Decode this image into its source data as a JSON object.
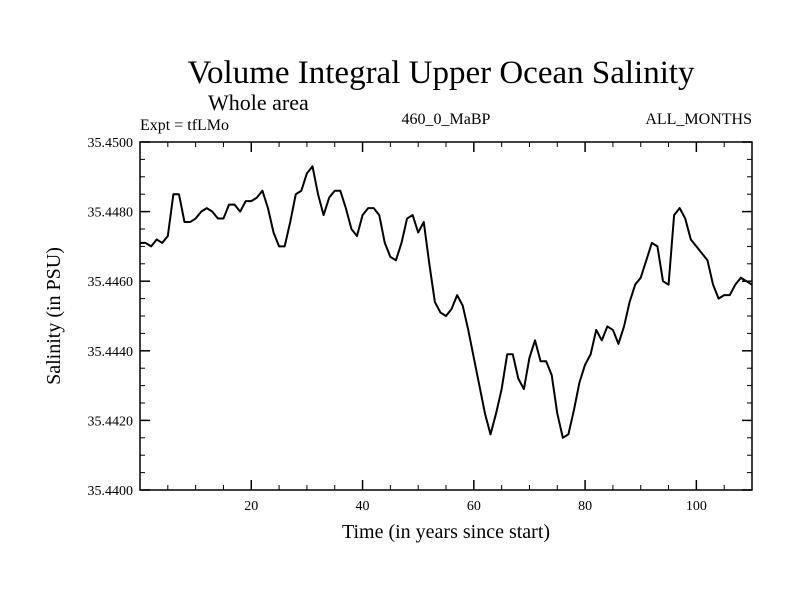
{
  "chart_data": {
    "type": "line",
    "title": "Volume Integral Upper Ocean Salinity",
    "subtitle": "Whole area",
    "left_label": "Expt = tfLMo",
    "center_label": "460_0_MaBP",
    "right_label": "ALL_MONTHS",
    "xlabel": "Time (in years since start)",
    "ylabel": "Salinity (in PSU)",
    "xlim": [
      0,
      110
    ],
    "ylim": [
      35.44,
      35.45
    ],
    "xticks": [
      20,
      40,
      60,
      80,
      100
    ],
    "xtick_labels": [
      "20",
      "40",
      "60",
      "80",
      "100"
    ],
    "yticks": [
      35.44,
      35.442,
      35.444,
      35.446,
      35.448,
      35.45
    ],
    "ytick_labels": [
      "35.4400",
      "35.4420",
      "35.4440",
      "35.4460",
      "35.4480",
      "35.4500"
    ],
    "series": [
      {
        "name": "salinity",
        "x": [
          0,
          1,
          2,
          3,
          4,
          5,
          6,
          7,
          8,
          9,
          10,
          11,
          12,
          13,
          14,
          15,
          16,
          17,
          18,
          19,
          20,
          21,
          22,
          23,
          24,
          25,
          26,
          27,
          28,
          29,
          30,
          31,
          32,
          33,
          34,
          35,
          36,
          37,
          38,
          39,
          40,
          41,
          42,
          43,
          44,
          45,
          46,
          47,
          48,
          49,
          50,
          51,
          52,
          53,
          54,
          55,
          56,
          57,
          58,
          59,
          60,
          61,
          62,
          63,
          64,
          65,
          66,
          67,
          68,
          69,
          70,
          71,
          72,
          73,
          74,
          75,
          76,
          77,
          78,
          79,
          80,
          81,
          82,
          83,
          84,
          85,
          86,
          87,
          88,
          89,
          90,
          91,
          92,
          93,
          94,
          95,
          96,
          97,
          98,
          99,
          100,
          101,
          102,
          103,
          104,
          105,
          106,
          107,
          108,
          109,
          110
        ],
        "y": [
          35.4471,
          35.4471,
          35.447,
          35.4472,
          35.4471,
          35.4473,
          35.4485,
          35.4485,
          35.4477,
          35.4477,
          35.4478,
          35.448,
          35.4481,
          35.448,
          35.4478,
          35.4478,
          35.4482,
          35.4482,
          35.448,
          35.4483,
          35.4483,
          35.4484,
          35.4486,
          35.4481,
          35.4474,
          35.447,
          35.447,
          35.4477,
          35.4485,
          35.4486,
          35.4491,
          35.4493,
          35.4485,
          35.4479,
          35.4484,
          35.4486,
          35.4486,
          35.4481,
          35.4475,
          35.4473,
          35.4479,
          35.4481,
          35.4481,
          35.4479,
          35.4471,
          35.4467,
          35.4466,
          35.4471,
          35.4478,
          35.4479,
          35.4474,
          35.4477,
          35.4465,
          35.4454,
          35.4451,
          35.445,
          35.4452,
          35.4456,
          35.4453,
          35.4446,
          35.4438,
          35.443,
          35.4422,
          35.4416,
          35.4422,
          35.4429,
          35.4439,
          35.4439,
          35.4432,
          35.4429,
          35.4438,
          35.4443,
          35.4437,
          35.4437,
          35.4433,
          35.4422,
          35.4415,
          35.4416,
          35.4423,
          35.4431,
          35.4436,
          35.4439,
          35.4446,
          35.4443,
          35.4447,
          35.4446,
          35.4442,
          35.4447,
          35.4454,
          35.4459,
          35.4461,
          35.4466,
          35.4471,
          35.447,
          35.446,
          35.4459,
          35.4479,
          35.4481,
          35.4478,
          35.4472,
          35.447,
          35.4468,
          35.4466,
          35.4459,
          35.4455,
          35.4456,
          35.4456,
          35.4459,
          35.4461,
          35.446,
          35.4459
        ]
      }
    ]
  }
}
